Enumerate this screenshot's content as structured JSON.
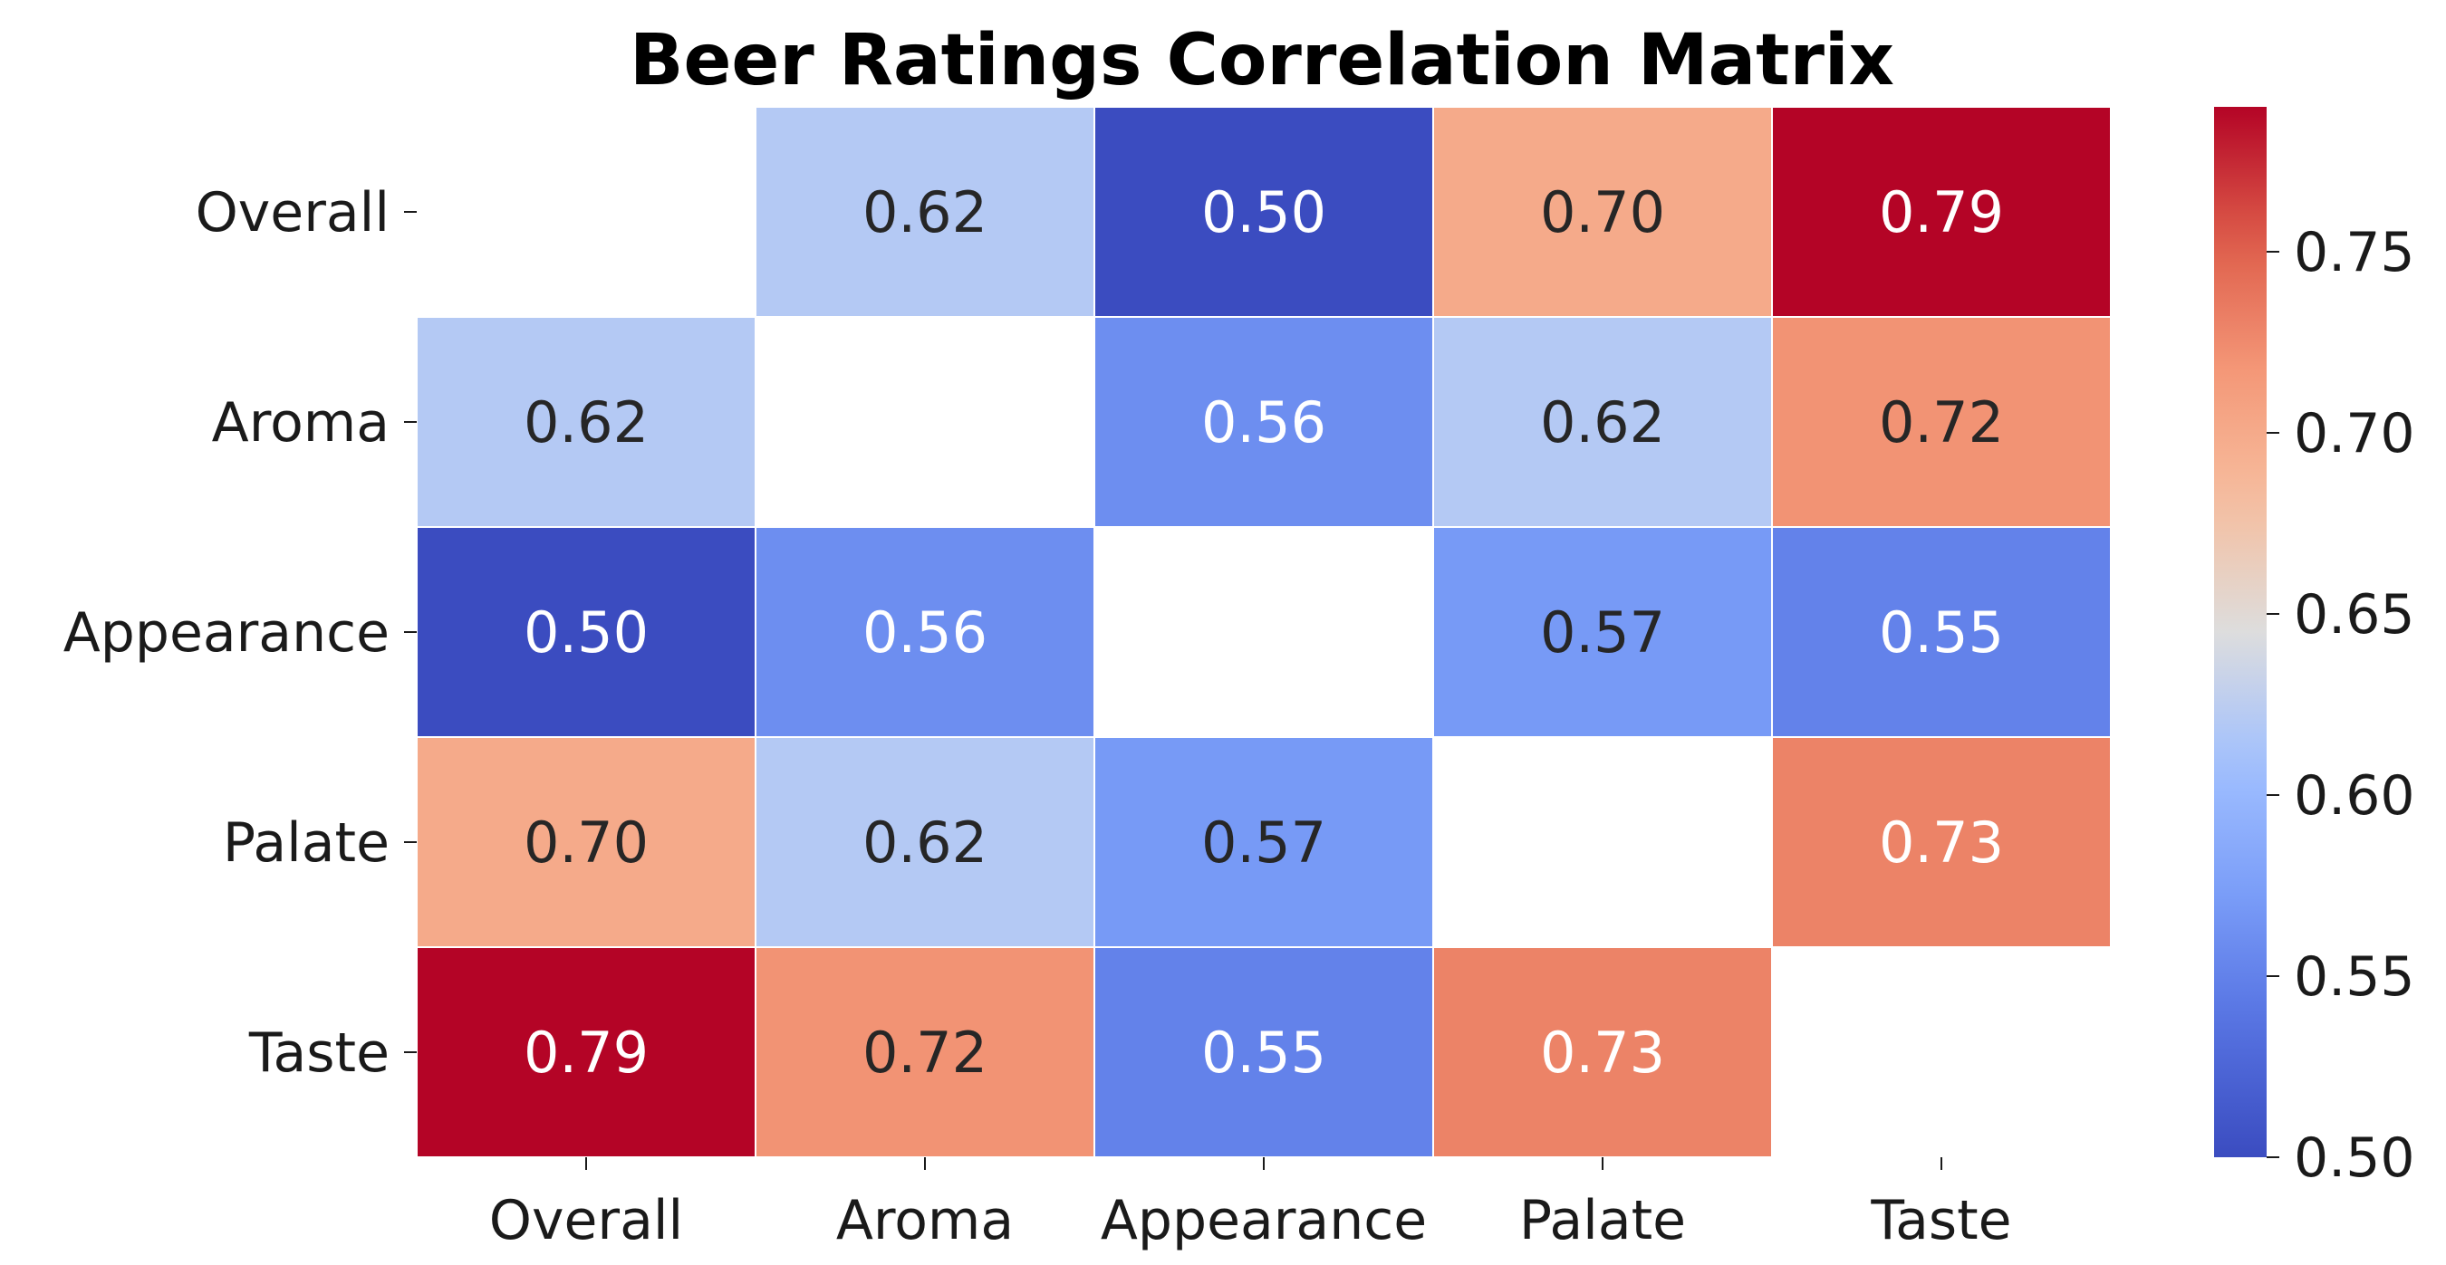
{
  "chart_data": {
    "type": "heatmap",
    "title": "Beer Ratings Correlation Matrix",
    "rows": [
      "Overall",
      "Aroma",
      "Appearance",
      "Palate",
      "Taste"
    ],
    "columns": [
      "Overall",
      "Aroma",
      "Appearance",
      "Palate",
      "Taste"
    ],
    "values": [
      [
        null,
        0.62,
        0.5,
        0.7,
        0.79
      ],
      [
        0.62,
        null,
        0.56,
        0.62,
        0.72
      ],
      [
        0.5,
        0.56,
        null,
        0.57,
        0.55
      ],
      [
        0.7,
        0.62,
        0.57,
        null,
        0.73
      ],
      [
        0.79,
        0.72,
        0.55,
        0.73,
        null
      ]
    ],
    "value_format": "2 decimals",
    "diagonal_masked": true,
    "colormap": "coolwarm",
    "colorbar": {
      "range": [
        0.5,
        0.79
      ],
      "ticks": [
        0.5,
        0.55,
        0.6,
        0.65,
        0.7,
        0.75
      ],
      "tick_labels": [
        "0.50",
        "0.55",
        "0.60",
        "0.65",
        "0.70",
        "0.75"
      ],
      "placement": "right"
    },
    "colors": {
      "low": "#3b4cc0",
      "mid": "#dddddd",
      "high": "#b40426",
      "text_dark": "#262626",
      "text_light": "#ffffff",
      "cell_border": "#ffffff"
    }
  }
}
